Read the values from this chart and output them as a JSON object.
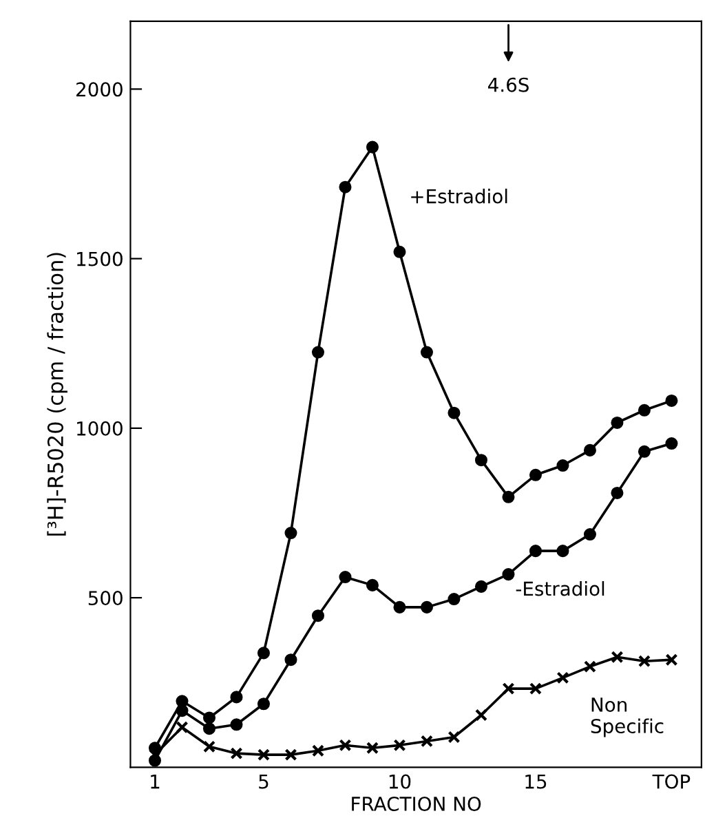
{
  "chart_data": {
    "type": "line",
    "xlabel": "FRACTION NO",
    "ylabel": "[³H]-R5020 (cpm / fraction)",
    "x": [
      1,
      2,
      3,
      4,
      5,
      6,
      7,
      8,
      9,
      10,
      11,
      12,
      13,
      14,
      15,
      16,
      17,
      18,
      19,
      20
    ],
    "series": [
      {
        "name": "+Estradiol",
        "color": "#000000",
        "marker": "circle",
        "values": [
          57,
          195,
          146,
          207,
          337,
          691,
          1224,
          1711,
          1829,
          1520,
          1224,
          1045,
          906,
          797,
          862,
          890,
          935,
          1016,
          1053,
          1081
        ]
      },
      {
        "name": "-Estradiol",
        "color": "#000000",
        "marker": "circle",
        "values": [
          20,
          167,
          114,
          126,
          187,
          317,
          447,
          561,
          537,
          472,
          472,
          496,
          533,
          569,
          638,
          638,
          687,
          809,
          931,
          955
        ]
      },
      {
        "name": "Non Specific",
        "color": "#000000",
        "marker": "cross",
        "values": [
          37,
          118,
          61,
          41,
          37,
          37,
          49,
          65,
          57,
          65,
          77,
          89,
          154,
          232,
          232,
          264,
          297,
          325,
          313,
          317
        ]
      }
    ],
    "xlim": [
      0.1,
      21.1
    ],
    "ylim": [
      0,
      2200
    ],
    "xticks": [
      1,
      5,
      10,
      15,
      {
        "value": 20,
        "label": "TOP"
      }
    ],
    "yticks": [
      500,
      1000,
      1500,
      2000
    ],
    "annotations": [
      "4.6S"
    ],
    "grid": false,
    "legend": false,
    "line_style": "solid"
  }
}
